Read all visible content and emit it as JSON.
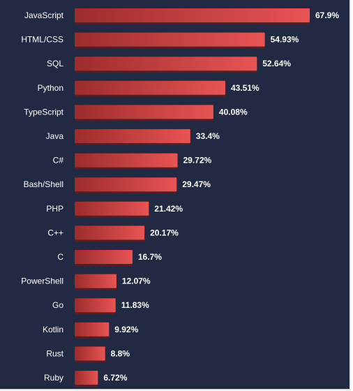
{
  "chart_data": {
    "type": "bar",
    "orientation": "horizontal",
    "categories": [
      "JavaScript",
      "HTML/CSS",
      "SQL",
      "Python",
      "TypeScript",
      "Java",
      "C#",
      "Bash/Shell",
      "PHP",
      "C++",
      "C",
      "PowerShell",
      "Go",
      "Kotlin",
      "Rust",
      "Ruby"
    ],
    "values": [
      67.9,
      54.93,
      52.64,
      43.51,
      40.08,
      33.4,
      29.72,
      29.47,
      21.42,
      20.17,
      16.7,
      12.07,
      11.83,
      9.92,
      8.8,
      6.72
    ],
    "value_labels": [
      "67.9%",
      "54.93%",
      "52.64%",
      "43.51%",
      "40.08%",
      "33.4%",
      "29.72%",
      "29.47%",
      "21.42%",
      "20.17%",
      "16.7%",
      "12.07%",
      "11.83%",
      "9.92%",
      "8.8%",
      "6.72%"
    ],
    "xlim": [
      0,
      67.9
    ],
    "grid": false,
    "colors": {
      "background": "#212a42",
      "bar_light": "#e85454",
      "bar_dark": "#9c2c2c",
      "bar_shadow": "#5e1a1e",
      "text": "#ffffff"
    }
  }
}
